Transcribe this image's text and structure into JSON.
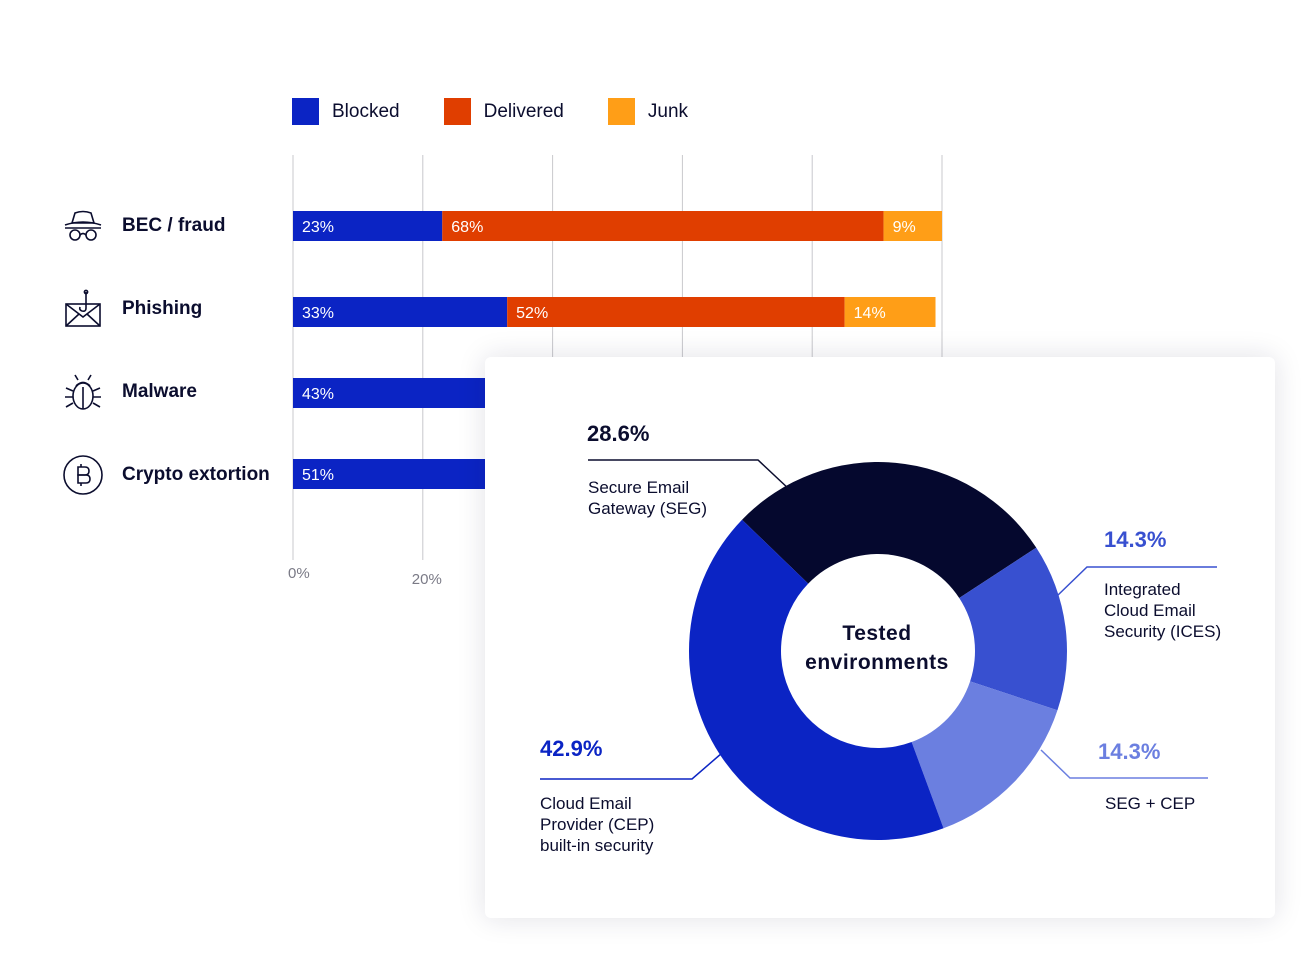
{
  "colors": {
    "blocked": "#0b24c4",
    "delivered": "#e03e00",
    "junk": "#ff9e17",
    "grid": "#c8c8cc",
    "dark": "#05082e",
    "mid": "#3850d0",
    "light": "#6b7fe0",
    "text": "#0b0d2e",
    "tick": "#7a7a86"
  },
  "legend": [
    {
      "label": "Blocked",
      "color": "#0b24c4"
    },
    {
      "label": "Delivered",
      "color": "#e03e00"
    },
    {
      "label": "Junk",
      "color": "#ff9e17"
    }
  ],
  "rows": [
    {
      "label": "BEC / fraud",
      "icon": "spy-hat-glasses-icon"
    },
    {
      "label": "Phishing",
      "icon": "envelope-hook-icon"
    },
    {
      "label": "Malware",
      "icon": "bug-icon"
    },
    {
      "label": "Crypto extortion",
      "icon": "bitcoin-icon"
    }
  ],
  "chart_data": [
    {
      "type": "bar",
      "orientation": "horizontal",
      "stacked": true,
      "categories": [
        "BEC / fraud",
        "Phishing",
        "Malware",
        "Crypto extortion"
      ],
      "series": [
        {
          "name": "Blocked",
          "values": [
            23,
            33,
            43,
            51
          ],
          "labels": [
            "23%",
            "33%",
            "43%",
            "51%"
          ]
        },
        {
          "name": "Delivered",
          "values": [
            68,
            52,
            null,
            null
          ],
          "labels": [
            "68%",
            "52%",
            "",
            ""
          ]
        },
        {
          "name": "Junk",
          "values": [
            9,
            14,
            null,
            null
          ],
          "labels": [
            "9%",
            "14%",
            "",
            ""
          ]
        }
      ],
      "x_ticks": [
        {
          "value": 0,
          "label": "0%"
        },
        {
          "value": 20,
          "label": "20%"
        }
      ],
      "xlim": [
        0,
        100
      ],
      "grid_values": [
        0,
        20,
        40,
        60,
        80,
        100
      ],
      "legend_position": "top"
    },
    {
      "type": "pie",
      "donut": true,
      "center_label": [
        "Tested",
        "environments"
      ],
      "slices": [
        {
          "name": "Secure Email Gateway (SEG)",
          "desc_lines": [
            "Secure Email",
            "Gateway (SEG)"
          ],
          "value": 28.6,
          "label": "28.6%",
          "color": "#05082e",
          "label_color": "#0b0d2e"
        },
        {
          "name": "Integrated Cloud Email Security (ICES)",
          "desc_lines": [
            "Integrated",
            "Cloud Email",
            "Security (ICES)"
          ],
          "value": 14.3,
          "label": "14.3%",
          "color": "#3850d0",
          "label_color": "#3850d0"
        },
        {
          "name": "SEG + CEP",
          "desc_lines": [
            "SEG + CEP"
          ],
          "value": 14.3,
          "label": "14.3%",
          "color": "#6b7fe0",
          "label_color": "#6b7fe0"
        },
        {
          "name": "Cloud Email Provider (CEP) built-in security",
          "desc_lines": [
            "Cloud Email",
            "Provider (CEP)",
            "built-in security"
          ],
          "value": 42.9,
          "label": "42.9%",
          "color": "#0b24c4",
          "label_color": "#0b24c4"
        }
      ]
    }
  ]
}
